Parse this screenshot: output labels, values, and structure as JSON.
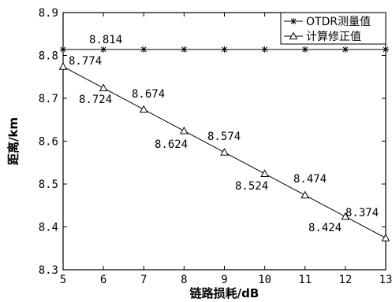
{
  "chart_data": {
    "type": "line",
    "xlabel": "链路损耗/dB",
    "ylabel": "距离/km",
    "xlim": [
      5,
      13
    ],
    "ylim": [
      8.3,
      8.9
    ],
    "xticks": [
      "5",
      "6",
      "7",
      "8",
      "9",
      "10",
      "11",
      "12",
      "13"
    ],
    "yticks": [
      "8.3",
      "8.4",
      "8.5",
      "8.6",
      "8.7",
      "8.8",
      "8.9"
    ],
    "x": [
      5,
      6,
      7,
      8,
      9,
      10,
      11,
      12,
      13
    ],
    "series": [
      {
        "name": "OTDR测量值",
        "marker": "star",
        "values": [
          8.814,
          8.814,
          8.814,
          8.814,
          8.814,
          8.814,
          8.814,
          8.814,
          8.814
        ]
      },
      {
        "name": "计算修正值",
        "marker": "triangle",
        "values": [
          8.774,
          8.724,
          8.674,
          8.624,
          8.574,
          8.524,
          8.474,
          8.424,
          8.374
        ]
      }
    ],
    "annotations": [
      "8.814",
      "8.774",
      "8.724",
      "8.674",
      "8.624",
      "8.574",
      "8.524",
      "8.474",
      "8.424",
      "8.374"
    ],
    "legend": "top-right",
    "grid": false,
    "colors": {
      "line": "#000000",
      "background": "#ffffff"
    }
  }
}
